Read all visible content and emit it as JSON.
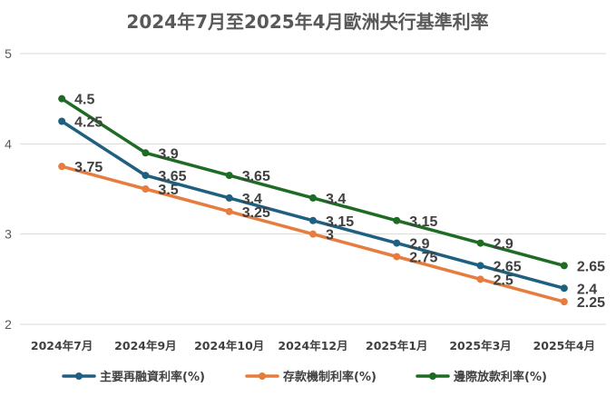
{
  "chart_data": {
    "type": "line",
    "title": "2024年7月至2025年4月歐洲央行基準利率",
    "categories": [
      "2024年7月",
      "2024年9月",
      "2024年10月",
      "2024年12月",
      "2025年1月",
      "2025年3月",
      "2025年4月"
    ],
    "ylim": [
      2,
      5
    ],
    "yticks": [
      "2",
      "3",
      "4",
      "5"
    ],
    "grid": true,
    "legend": "bottom",
    "series": [
      {
        "name": "主要再融資利率(%)",
        "color": "#1f5f80",
        "values": [
          4.25,
          3.65,
          3.4,
          3.15,
          2.9,
          2.65,
          2.4
        ],
        "labels": [
          "4.25",
          "3.65",
          "3.4",
          "3.15",
          "2.9",
          "2.65",
          "2.4"
        ]
      },
      {
        "name": "存款機制利率(%)",
        "color": "#e67c3d",
        "values": [
          3.75,
          3.5,
          3.25,
          3,
          2.75,
          2.5,
          2.25
        ],
        "labels": [
          "3.75",
          "3.5",
          "3.25",
          "3",
          "2.75",
          "2.5",
          "2.25"
        ]
      },
      {
        "name": "邊際放款利率(%)",
        "color": "#1e6b24",
        "values": [
          4.5,
          3.9,
          3.65,
          3.4,
          3.15,
          2.9,
          2.65
        ],
        "labels": [
          "4.5",
          "3.9",
          "3.65",
          "3.4",
          "3.15",
          "2.9",
          "2.65"
        ]
      }
    ]
  }
}
